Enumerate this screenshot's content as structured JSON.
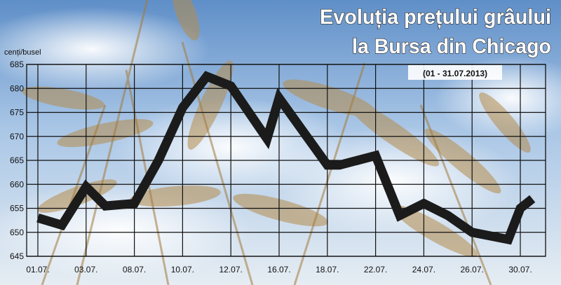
{
  "chart_data": {
    "type": "line",
    "title_line1": "Evoluția prețului grâului",
    "title_line2": "la Bursa din Chicago",
    "subtitle": "(01 - 31.07.2013)",
    "ylabel": "cenți/busel",
    "xlabel": "",
    "ylim": [
      645,
      685
    ],
    "yticks": [
      "645",
      "650",
      "655",
      "660",
      "665",
      "670",
      "675",
      "680",
      "685"
    ],
    "xticks": [
      "01.07.",
      "03.07.",
      "08.07.",
      "10.07.",
      "12.07.",
      "16.07.",
      "18.07.",
      "22.07.",
      "24.07.",
      "26.07.",
      "30.07."
    ],
    "grid": true,
    "series": [
      {
        "x": [
          "01.07.",
          "02.07.",
          "03.07.",
          "05.07.",
          "08.07.",
          "09.07.",
          "10.07.",
          "11.07.",
          "12.07.",
          "15.07.",
          "16.07.",
          "17.07.",
          "18.07.",
          "19.07.",
          "22.07.",
          "23.07.",
          "24.07.",
          "25.07.",
          "26.07.",
          "29.07.",
          "30.07.",
          "31.07."
        ],
        "values": [
          653,
          651.5,
          659.5,
          655.5,
          656,
          665,
          676,
          682.5,
          680.5,
          669.5,
          678,
          671,
          664,
          664,
          666,
          653.5,
          656,
          653.5,
          650,
          648.5,
          655,
          657
        ]
      }
    ],
    "colors": {
      "line": "#1b1b1b",
      "grid": "#111111",
      "title": "#ffffff",
      "sky": "#8fb3dc",
      "wheat": "#b08a4a"
    }
  }
}
